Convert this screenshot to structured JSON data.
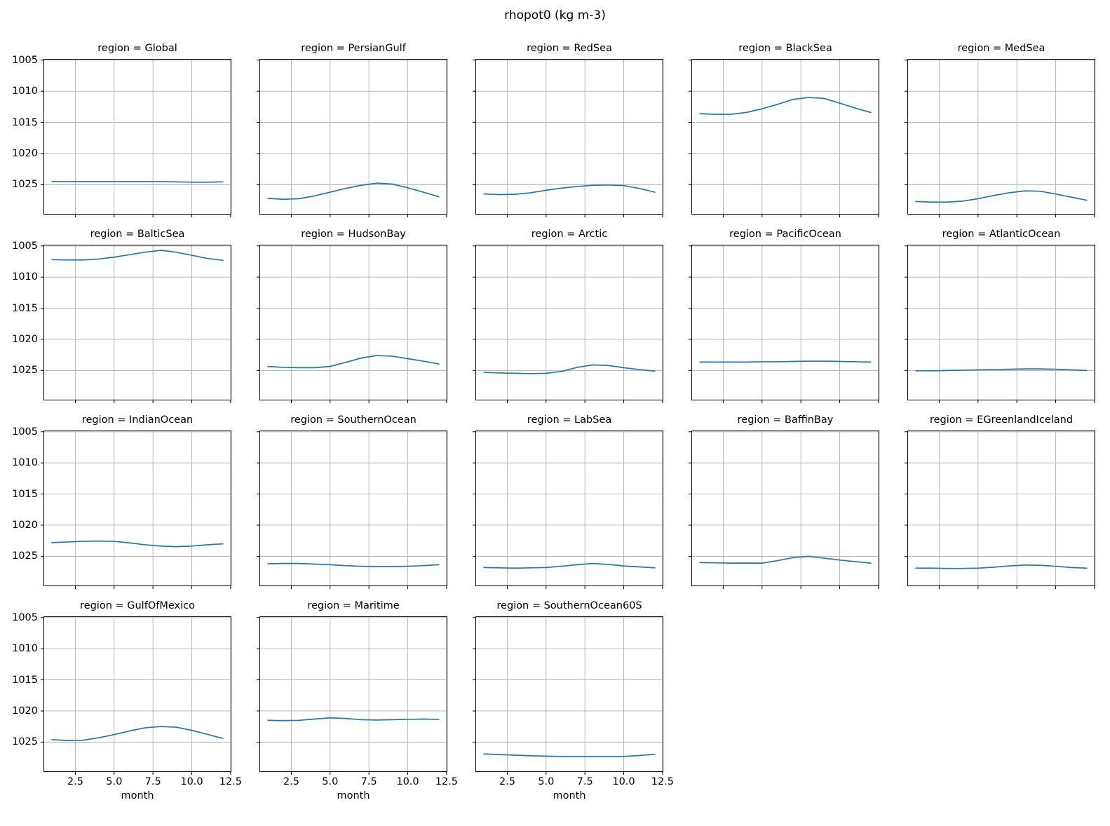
{
  "figure": {
    "title": "rhopot0 (kg m-3)"
  },
  "chart_data": {
    "type": "line",
    "facet_title_prefix": "region = ",
    "xlabel": "month",
    "x": [
      1,
      2,
      3,
      4,
      5,
      6,
      7,
      8,
      9,
      10,
      11,
      12
    ],
    "x_ticks": [
      2.5,
      5.0,
      7.5,
      10.0,
      12.5
    ],
    "x_tick_labels": [
      "2.5",
      "5.0",
      "7.5",
      "10.0",
      "12.5"
    ],
    "xlim": [
      0.45,
      12.55
    ],
    "y_ticks": [
      1005,
      1010,
      1015,
      1020,
      1025
    ],
    "y_tick_labels": [
      "1005",
      "1010",
      "1015",
      "1020",
      "1025"
    ],
    "ylim_top": 1004.8,
    "ylim_bottom": 1029.8,
    "y_axis_inverted": true,
    "grid": true,
    "line_color": "#1f77b4",
    "grid_color": "#b0b0b0",
    "columns": 5,
    "series": [
      {
        "name": "Global",
        "label": "region = Global",
        "values": [
          1024.5,
          1024.5,
          1024.5,
          1024.5,
          1024.5,
          1024.5,
          1024.5,
          1024.5,
          1024.55,
          1024.6,
          1024.6,
          1024.55
        ]
      },
      {
        "name": "PersianGulf",
        "label": "region = PersianGulf",
        "values": [
          1027.2,
          1027.35,
          1027.25,
          1026.8,
          1026.2,
          1025.6,
          1025.1,
          1024.75,
          1024.9,
          1025.5,
          1026.2,
          1026.95
        ]
      },
      {
        "name": "RedSea",
        "label": "region = RedSea",
        "values": [
          1026.5,
          1026.6,
          1026.55,
          1026.3,
          1025.9,
          1025.55,
          1025.3,
          1025.1,
          1025.05,
          1025.15,
          1025.6,
          1026.2
        ]
      },
      {
        "name": "BlackSea",
        "label": "region = BlackSea",
        "values": [
          1013.6,
          1013.7,
          1013.7,
          1013.4,
          1012.8,
          1012.1,
          1011.3,
          1011.0,
          1011.15,
          1011.9,
          1012.7,
          1013.4
        ]
      },
      {
        "name": "MedSea",
        "label": "region = MedSea",
        "values": [
          1027.7,
          1027.8,
          1027.8,
          1027.65,
          1027.25,
          1026.75,
          1026.3,
          1026.0,
          1026.05,
          1026.5,
          1027.0,
          1027.5
        ]
      },
      {
        "name": "BalticSea",
        "label": "region = BalticSea",
        "values": [
          1007.2,
          1007.25,
          1007.25,
          1007.1,
          1006.8,
          1006.4,
          1006.0,
          1005.7,
          1006.0,
          1006.5,
          1007.0,
          1007.3
        ]
      },
      {
        "name": "HudsonBay",
        "label": "region = HudsonBay",
        "values": [
          1024.35,
          1024.5,
          1024.55,
          1024.55,
          1024.35,
          1023.7,
          1023.0,
          1022.6,
          1022.7,
          1023.1,
          1023.5,
          1023.95
        ]
      },
      {
        "name": "Arctic",
        "label": "region = Arctic",
        "values": [
          1025.3,
          1025.4,
          1025.45,
          1025.5,
          1025.45,
          1025.15,
          1024.5,
          1024.1,
          1024.2,
          1024.55,
          1024.85,
          1025.1
        ]
      },
      {
        "name": "PacificOcean",
        "label": "region = PacificOcean",
        "values": [
          1023.65,
          1023.65,
          1023.65,
          1023.65,
          1023.6,
          1023.6,
          1023.55,
          1023.5,
          1023.5,
          1023.55,
          1023.6,
          1023.65
        ]
      },
      {
        "name": "AtlanticOcean",
        "label": "region = AtlanticOcean",
        "values": [
          1025.05,
          1025.05,
          1025.0,
          1024.95,
          1024.9,
          1024.85,
          1024.8,
          1024.75,
          1024.75,
          1024.8,
          1024.9,
          1025.0
        ]
      },
      {
        "name": "IndianOcean",
        "label": "region = IndianOcean",
        "values": [
          1022.8,
          1022.7,
          1022.6,
          1022.55,
          1022.6,
          1022.85,
          1023.15,
          1023.35,
          1023.45,
          1023.35,
          1023.15,
          1023.0
        ]
      },
      {
        "name": "SouthernOcean",
        "label": "region = SouthernOcean",
        "values": [
          1026.2,
          1026.15,
          1026.15,
          1026.25,
          1026.35,
          1026.5,
          1026.6,
          1026.65,
          1026.65,
          1026.6,
          1026.5,
          1026.35
        ]
      },
      {
        "name": "LabSea",
        "label": "region = LabSea",
        "values": [
          1026.8,
          1026.85,
          1026.9,
          1026.85,
          1026.8,
          1026.6,
          1026.35,
          1026.15,
          1026.3,
          1026.55,
          1026.7,
          1026.85
        ]
      },
      {
        "name": "BaffinBay",
        "label": "region = BaffinBay",
        "values": [
          1026.0,
          1026.05,
          1026.1,
          1026.1,
          1026.1,
          1025.7,
          1025.2,
          1025.0,
          1025.3,
          1025.6,
          1025.85,
          1026.1
        ]
      },
      {
        "name": "EGreenlandIceland",
        "label": "region = EGreenlandIceland",
        "values": [
          1026.9,
          1026.9,
          1026.95,
          1026.95,
          1026.9,
          1026.75,
          1026.55,
          1026.4,
          1026.45,
          1026.6,
          1026.8,
          1026.9
        ]
      },
      {
        "name": "GulfOfMexico",
        "label": "region = GulfOfMexico",
        "values": [
          1024.6,
          1024.75,
          1024.7,
          1024.3,
          1023.8,
          1023.2,
          1022.7,
          1022.5,
          1022.6,
          1023.1,
          1023.75,
          1024.4
        ]
      },
      {
        "name": "Maritime",
        "label": "region = Maritime",
        "values": [
          1021.5,
          1021.55,
          1021.5,
          1021.3,
          1021.1,
          1021.2,
          1021.4,
          1021.45,
          1021.4,
          1021.35,
          1021.3,
          1021.35
        ]
      },
      {
        "name": "SouthernOcean60S",
        "label": "region = SouthernOcean60S",
        "values": [
          1026.9,
          1027.0,
          1027.1,
          1027.2,
          1027.25,
          1027.3,
          1027.3,
          1027.3,
          1027.3,
          1027.3,
          1027.15,
          1026.95
        ]
      }
    ]
  }
}
